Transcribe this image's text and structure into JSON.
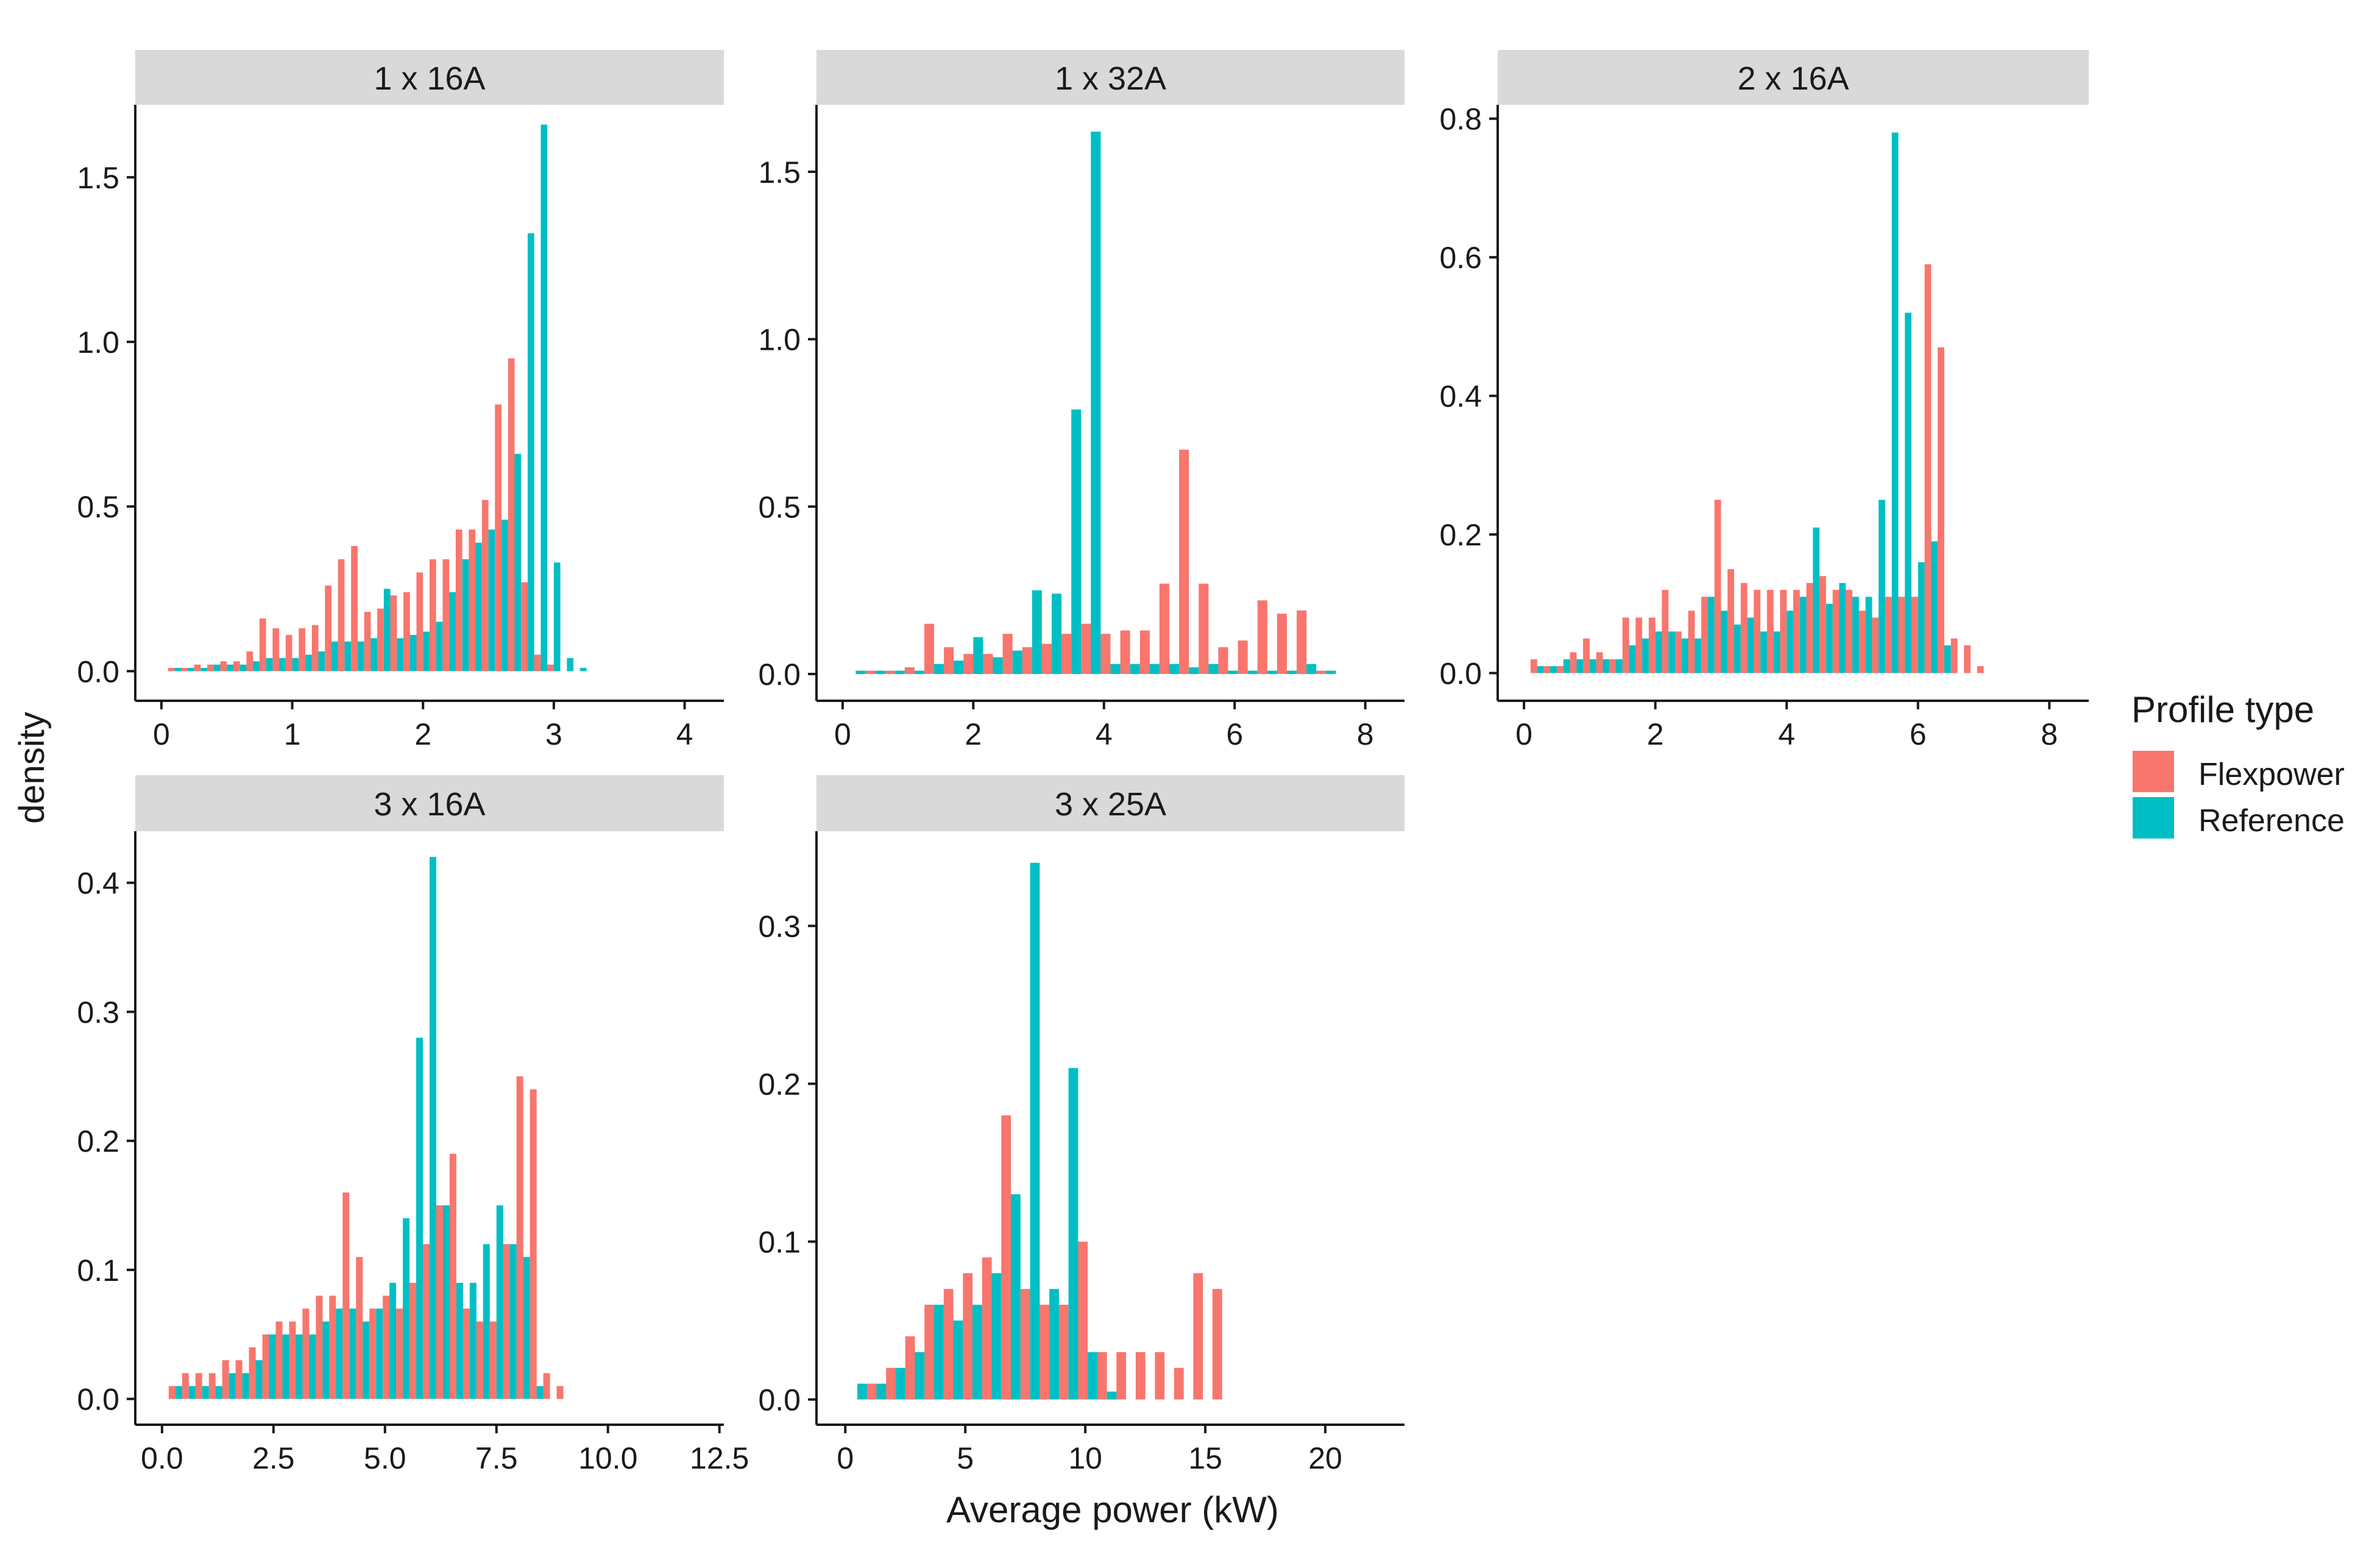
{
  "figure": {
    "ylabel": "density",
    "xlabel": "Average power (kW)"
  },
  "legend": {
    "title": "Profile type",
    "entries": [
      {
        "name": "Flexpower",
        "color": "#F8766D"
      },
      {
        "name": "Reference",
        "color": "#00BFC4"
      }
    ]
  },
  "chart_data": [
    {
      "type": "bar",
      "title": "1 x 16A",
      "xlim": [
        -0.2,
        4.3
      ],
      "ylim": [
        -0.09,
        1.72
      ],
      "xticks": [
        0,
        1,
        2,
        3,
        4
      ],
      "xtick_labels": [
        "0",
        "1",
        "2",
        "3",
        "4"
      ],
      "yticks": [
        0,
        0.5,
        1,
        1.5
      ],
      "ytick_labels": [
        "0.0",
        "0.5",
        "1.0",
        "1.5"
      ],
      "bin_width": 0.1,
      "series": [
        {
          "name": "Flexpower",
          "x": [
            0.1,
            0.2,
            0.3,
            0.4,
            0.5,
            0.6,
            0.7,
            0.8,
            0.9,
            1.0,
            1.1,
            1.2,
            1.3,
            1.4,
            1.5,
            1.6,
            1.7,
            1.8,
            1.9,
            2.0,
            2.1,
            2.2,
            2.3,
            2.4,
            2.5,
            2.6,
            2.7,
            2.8,
            2.9,
            3.0,
            3.1,
            3.2,
            3.3,
            3.4,
            3.5,
            3.6,
            3.7,
            3.8,
            3.9,
            4.0
          ],
          "values": [
            0.01,
            0.01,
            0.02,
            0.02,
            0.03,
            0.03,
            0.06,
            0.16,
            0.13,
            0.11,
            0.13,
            0.14,
            0.26,
            0.34,
            0.38,
            0.18,
            0.19,
            0.23,
            0.24,
            0.3,
            0.34,
            0.34,
            0.43,
            0.43,
            0.52,
            0.81,
            0.95,
            0.27,
            0.05,
            0.02,
            0,
            0,
            0,
            0,
            0,
            0,
            0,
            0,
            0,
            0
          ]
        },
        {
          "name": "Reference",
          "x": [
            0.1,
            0.2,
            0.3,
            0.4,
            0.5,
            0.6,
            0.7,
            0.8,
            0.9,
            1.0,
            1.1,
            1.2,
            1.3,
            1.4,
            1.5,
            1.6,
            1.7,
            1.8,
            1.9,
            2.0,
            2.1,
            2.2,
            2.3,
            2.4,
            2.5,
            2.6,
            2.7,
            2.8,
            2.9,
            3.0,
            3.1,
            3.2,
            3.3,
            3.4,
            3.5,
            3.6,
            3.7,
            3.8,
            3.9,
            4.0
          ],
          "values": [
            0.01,
            0.01,
            0.01,
            0.02,
            0.02,
            0.02,
            0.03,
            0.04,
            0.04,
            0.04,
            0.05,
            0.06,
            0.09,
            0.09,
            0.09,
            0.1,
            0.25,
            0.1,
            0.11,
            0.12,
            0.15,
            0.24,
            0.34,
            0.39,
            0.43,
            0.46,
            0.66,
            1.33,
            1.66,
            0.33,
            0.04,
            0.01,
            0,
            0,
            0,
            0,
            0,
            0,
            0,
            0
          ]
        }
      ]
    },
    {
      "type": "bar",
      "title": "1 x 32A",
      "xlim": [
        -0.4,
        8.6
      ],
      "ylim": [
        -0.08,
        1.7
      ],
      "xticks": [
        0,
        2,
        4,
        6,
        8
      ],
      "xtick_labels": [
        "0",
        "2",
        "4",
        "6",
        "8"
      ],
      "yticks": [
        0,
        0.5,
        1,
        1.5
      ],
      "ytick_labels": [
        "0.0",
        "0.5",
        "1.0",
        "1.5"
      ],
      "bin_width": 0.3,
      "series": [
        {
          "name": "Flexpower",
          "x": [
            0.2,
            0.5,
            0.8,
            1.1,
            1.4,
            1.7,
            2.0,
            2.3,
            2.6,
            2.9,
            3.2,
            3.5,
            3.8,
            4.1,
            4.4,
            4.7,
            5.0,
            5.3,
            5.6,
            5.9,
            6.2,
            6.5,
            6.8,
            7.1,
            7.4,
            7.7,
            8.0
          ],
          "values": [
            0.0,
            0.01,
            0.01,
            0.02,
            0.15,
            0.08,
            0.06,
            0.06,
            0.12,
            0.08,
            0.09,
            0.12,
            0.15,
            0.12,
            0.13,
            0.13,
            0.27,
            0.67,
            0.27,
            0.08,
            0.1,
            0.22,
            0.18,
            0.19,
            0.01,
            0.0,
            0.0
          ]
        },
        {
          "name": "Reference",
          "x": [
            0.2,
            0.5,
            0.8,
            1.1,
            1.4,
            1.7,
            2.0,
            2.3,
            2.6,
            2.9,
            3.2,
            3.5,
            3.8,
            4.1,
            4.4,
            4.7,
            5.0,
            5.3,
            5.6,
            5.9,
            6.2,
            6.5,
            6.8,
            7.1,
            7.4,
            7.7,
            8.0
          ],
          "values": [
            0.01,
            0.01,
            0.01,
            0.01,
            0.03,
            0.04,
            0.11,
            0.05,
            0.07,
            0.25,
            0.24,
            0.79,
            1.62,
            0.03,
            0.03,
            0.03,
            0.03,
            0.02,
            0.03,
            0.01,
            0.01,
            0.01,
            0.01,
            0.03,
            0.01,
            0.0,
            0.0
          ]
        }
      ]
    },
    {
      "type": "bar",
      "title": "2 x 16A",
      "xlim": [
        -0.4,
        8.6
      ],
      "ylim": [
        -0.04,
        0.82
      ],
      "xticks": [
        0,
        2,
        4,
        6,
        8
      ],
      "xtick_labels": [
        "0",
        "2",
        "4",
        "6",
        "8"
      ],
      "yticks": [
        0,
        0.2,
        0.4,
        0.6,
        0.8
      ],
      "ytick_labels": [
        "0.0",
        "0.2",
        "0.4",
        "0.6",
        "0.8"
      ],
      "bin_width": 0.2,
      "series": [
        {
          "name": "Flexpower",
          "x": [
            0.2,
            0.4,
            0.6,
            0.8,
            1.0,
            1.2,
            1.4,
            1.6,
            1.8,
            2.0,
            2.2,
            2.4,
            2.6,
            2.8,
            3.0,
            3.2,
            3.4,
            3.6,
            3.8,
            4.0,
            4.2,
            4.4,
            4.6,
            4.8,
            5.0,
            5.2,
            5.4,
            5.6,
            5.8,
            6.0,
            6.2,
            6.4,
            6.6,
            6.8,
            7.0,
            7.2,
            7.4,
            7.6,
            7.8
          ],
          "values": [
            0.02,
            0.01,
            0.01,
            0.03,
            0.05,
            0.03,
            0.02,
            0.08,
            0.08,
            0.08,
            0.12,
            0.06,
            0.09,
            0.11,
            0.25,
            0.15,
            0.13,
            0.12,
            0.12,
            0.12,
            0.12,
            0.13,
            0.14,
            0.12,
            0.12,
            0.09,
            0.08,
            0.11,
            0.11,
            0.11,
            0.59,
            0.47,
            0.05,
            0.04,
            0.01,
            0,
            0,
            0,
            0
          ]
        },
        {
          "name": "Reference",
          "x": [
            0.2,
            0.4,
            0.6,
            0.8,
            1.0,
            1.2,
            1.4,
            1.6,
            1.8,
            2.0,
            2.2,
            2.4,
            2.6,
            2.8,
            3.0,
            3.2,
            3.4,
            3.6,
            3.8,
            4.0,
            4.2,
            4.4,
            4.6,
            4.8,
            5.0,
            5.2,
            5.4,
            5.6,
            5.8,
            6.0,
            6.2,
            6.4,
            6.6,
            6.8,
            7.0,
            7.2,
            7.4,
            7.6,
            7.8
          ],
          "values": [
            0.01,
            0.01,
            0.02,
            0.02,
            0.02,
            0.02,
            0.02,
            0.04,
            0.05,
            0.06,
            0.06,
            0.05,
            0.05,
            0.11,
            0.09,
            0.07,
            0.08,
            0.06,
            0.06,
            0.09,
            0.11,
            0.21,
            0.1,
            0.13,
            0.11,
            0.11,
            0.25,
            0.78,
            0.52,
            0.16,
            0.19,
            0.04,
            0,
            0,
            0,
            0,
            0,
            0,
            0
          ]
        }
      ]
    },
    {
      "type": "bar",
      "title": "3 x 16A",
      "xlim": [
        -0.6,
        12.6
      ],
      "ylim": [
        -0.02,
        0.44
      ],
      "xticks": [
        0,
        2.5,
        5,
        7.5,
        10,
        12.5
      ],
      "xtick_labels": [
        "0.0",
        "2.5",
        "5.0",
        "7.5",
        "10.0",
        "12.5"
      ],
      "yticks": [
        0,
        0.1,
        0.2,
        0.3,
        0.4
      ],
      "ytick_labels": [
        "0.0",
        "0.1",
        "0.2",
        "0.3",
        "0.4"
      ],
      "bin_width": 0.3,
      "series": [
        {
          "name": "Flexpower",
          "x": [
            0.3,
            0.6,
            0.9,
            1.2,
            1.5,
            1.8,
            2.1,
            2.4,
            2.7,
            3.0,
            3.3,
            3.6,
            3.9,
            4.2,
            4.5,
            4.8,
            5.1,
            5.4,
            5.7,
            6.0,
            6.3,
            6.6,
            6.9,
            7.2,
            7.5,
            7.8,
            8.1,
            8.4,
            8.7,
            9.0,
            9.3,
            9.6,
            9.9,
            10.2,
            10.5,
            10.8,
            11.1,
            11.4,
            11.7,
            12.0
          ],
          "values": [
            0.01,
            0.02,
            0.02,
            0.02,
            0.03,
            0.03,
            0.04,
            0.05,
            0.06,
            0.06,
            0.07,
            0.08,
            0.08,
            0.16,
            0.11,
            0.07,
            0.08,
            0.07,
            0.09,
            0.12,
            0.15,
            0.19,
            0.07,
            0.06,
            0.06,
            0.12,
            0.25,
            0.24,
            0.02,
            0.01,
            0,
            0,
            0,
            0,
            0,
            0,
            0,
            0,
            0,
            0
          ]
        },
        {
          "name": "Reference",
          "x": [
            0.3,
            0.6,
            0.9,
            1.2,
            1.5,
            1.8,
            2.1,
            2.4,
            2.7,
            3.0,
            3.3,
            3.6,
            3.9,
            4.2,
            4.5,
            4.8,
            5.1,
            5.4,
            5.7,
            6.0,
            6.3,
            6.6,
            6.9,
            7.2,
            7.5,
            7.8,
            8.1,
            8.4,
            8.7,
            9.0,
            9.3,
            9.6,
            9.9,
            10.2,
            10.5,
            10.8,
            11.1,
            11.4,
            11.7,
            12.0
          ],
          "values": [
            0.01,
            0.01,
            0.01,
            0.01,
            0.02,
            0.02,
            0.03,
            0.05,
            0.05,
            0.05,
            0.05,
            0.06,
            0.07,
            0.07,
            0.06,
            0.07,
            0.09,
            0.14,
            0.28,
            0.42,
            0.15,
            0.09,
            0.09,
            0.12,
            0.15,
            0.12,
            0.11,
            0.01,
            0.0,
            0.0,
            0,
            0,
            0,
            0,
            0,
            0,
            0,
            0,
            0,
            0
          ]
        }
      ]
    },
    {
      "type": "bar",
      "title": "3 x 25A",
      "xlim": [
        -1.2,
        23.3
      ],
      "ylim": [
        -0.016,
        0.36
      ],
      "xticks": [
        0,
        5,
        10,
        15,
        20
      ],
      "xtick_labels": [
        "0",
        "5",
        "10",
        "15",
        "20"
      ],
      "yticks": [
        0,
        0.1,
        0.2,
        0.3
      ],
      "ytick_labels": [
        "0.0",
        "0.1",
        "0.2",
        "0.3"
      ],
      "bin_width": 0.8,
      "series": [
        {
          "name": "Flexpower",
          "x": [
            0.5,
            1.3,
            2.1,
            2.9,
            3.7,
            4.5,
            5.3,
            6.1,
            6.9,
            7.7,
            8.5,
            9.3,
            10.1,
            10.9,
            11.7,
            12.5,
            13.3,
            14.1,
            14.9,
            15.7,
            16.5,
            17.3,
            18.1,
            18.9,
            19.7,
            20.5,
            21.3,
            22.1
          ],
          "values": [
            0.0,
            0.01,
            0.02,
            0.04,
            0.06,
            0.07,
            0.08,
            0.09,
            0.18,
            0.07,
            0.06,
            0.06,
            0.1,
            0.03,
            0.03,
            0.03,
            0.03,
            0.02,
            0.08,
            0.07,
            0.0,
            0.0,
            0.0,
            0.0,
            0.0,
            0.0,
            0.0,
            0.0
          ]
        },
        {
          "name": "Reference",
          "x": [
            0.5,
            1.3,
            2.1,
            2.9,
            3.7,
            4.5,
            5.3,
            6.1,
            6.9,
            7.7,
            8.5,
            9.3,
            10.1,
            10.9,
            11.7,
            12.5,
            13.3,
            14.1,
            14.9,
            15.7,
            16.5,
            17.3,
            18.1,
            18.9,
            19.7,
            20.5,
            21.3,
            22.1
          ],
          "values": [
            0.01,
            0.01,
            0.02,
            0.03,
            0.06,
            0.05,
            0.06,
            0.08,
            0.13,
            0.34,
            0.07,
            0.21,
            0.03,
            0.005,
            0,
            0,
            0,
            0,
            0,
            0,
            0,
            0,
            0,
            0,
            0,
            0,
            0,
            0
          ]
        }
      ]
    }
  ]
}
